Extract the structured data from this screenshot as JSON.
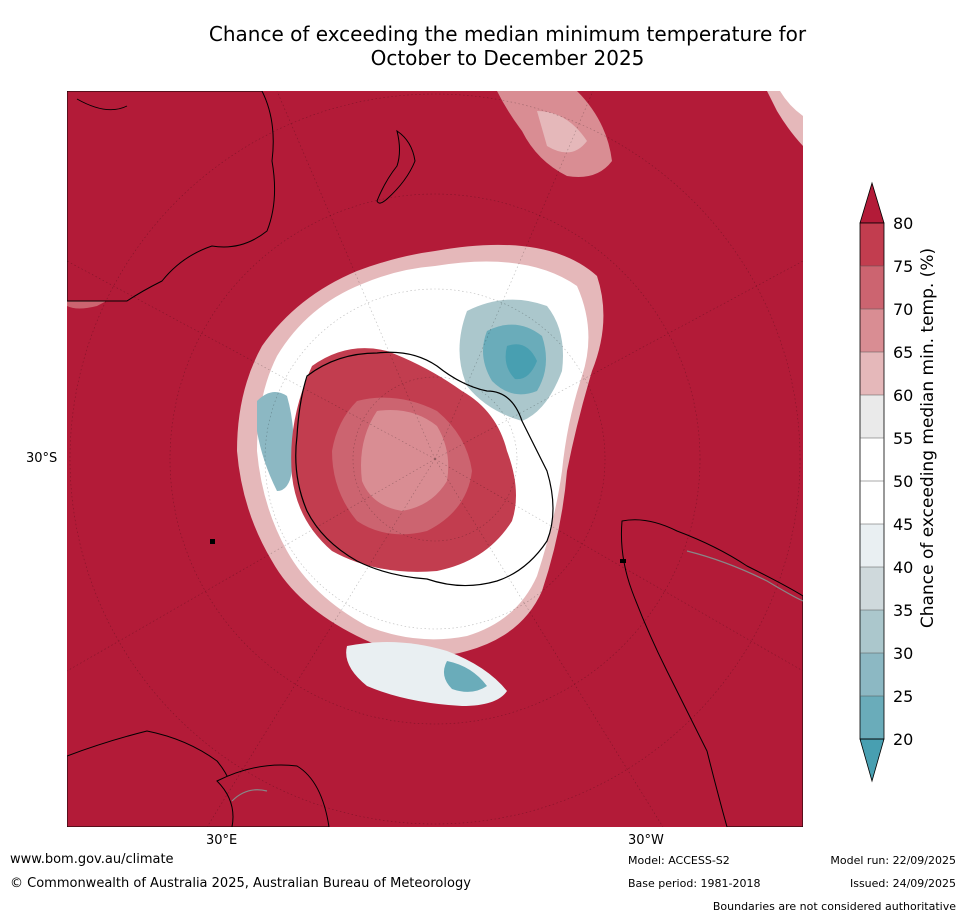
{
  "title": {
    "line1": "Chance of exceeding the median minimum temperature for",
    "line2": "October to December 2025"
  },
  "map": {
    "projection": "south-polar-stereographic",
    "lat_label": "30°S",
    "lon_labels": [
      "30°E",
      "30°W"
    ],
    "colors": {
      "ocean_high": "#b31b38",
      "above_75": "#c23d4f",
      "above_70": "#cc6470",
      "above_65": "#d98d93",
      "above_60": "#e5b8ba",
      "near_55": "#eaeaea",
      "near_50": "#ffffff",
      "below_45": "#e9eff2",
      "below_40": "#cfd9dc",
      "below_35": "#abc7cc",
      "below_30": "#8cb8c3",
      "below_25": "#6aacba",
      "below_20": "#489fb1"
    }
  },
  "colorbar": {
    "ticks": [
      "80",
      "75",
      "70",
      "65",
      "60",
      "55",
      "50",
      "45",
      "40",
      "35",
      "30",
      "25",
      "20"
    ],
    "label": "Chance of exceeding median min. temp. (%)"
  },
  "footer": {
    "website": "www.bom.gov.au/climate",
    "copyright": "© Commonwealth of Australia 2025, Australian Bureau of Meteorology",
    "model": "Model: ACCESS-S2",
    "base_period": "Base period: 1981-2018",
    "model_run": "Model run: 22/09/2025",
    "issued": "Issued: 24/09/2025",
    "disclaimer": "Boundaries are not considered authoritative"
  }
}
